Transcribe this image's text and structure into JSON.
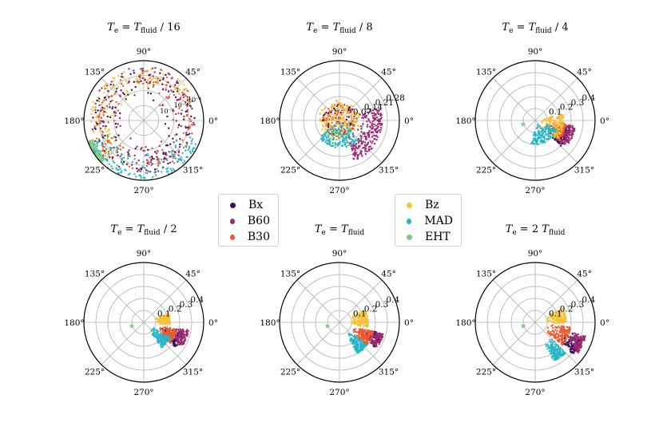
{
  "chart_data": {
    "type": "scatter",
    "subtype": "polar",
    "colors": {
      "Bx": "#3b0f5c",
      "B60": "#9c2a72",
      "B30": "#ee5a2c",
      "Bz": "#f5c136",
      "MAD": "#25b7c9",
      "EHT": "#7fc97f",
      "grid": "#b0b0b0"
    },
    "angle_ticks": [
      "0°",
      "45°",
      "90°",
      "135°",
      "180°",
      "225°",
      "270°",
      "315°"
    ],
    "legend": [
      "Bx",
      "B60",
      "B30",
      "Bz",
      "MAD",
      "EHT"
    ],
    "panels": [
      {
        "title_prefix": "T",
        "title_prefix_sub": "e",
        "title_eq": " = ",
        "title_var": "T",
        "title_var_sub": "fluid",
        "title_suffix": " / 16",
        "radial_scale": "log",
        "radial_tick_labels": [
          "10⁻³",
          "10⁻²",
          "10⁻¹"
        ],
        "series": [
          {
            "name": "Bx",
            "r_range": [
              0.35,
              0.85
            ],
            "theta_range": [
              0,
              360
            ],
            "n": 150
          },
          {
            "name": "B60",
            "r_range": [
              0.35,
              0.9
            ],
            "theta_range": [
              0,
              360
            ],
            "n": 150
          },
          {
            "name": "B30",
            "r_range": [
              0.35,
              0.85
            ],
            "theta_range": [
              0,
              360
            ],
            "n": 130
          },
          {
            "name": "Bz",
            "r_range": [
              0.45,
              0.9
            ],
            "theta_range": [
              20,
              230
            ],
            "n": 130
          },
          {
            "name": "MAD",
            "r_range": [
              0.55,
              1.0
            ],
            "theta_range": [
              200,
              340
            ],
            "n": 140
          }
        ],
        "eht": {
          "theta": [
            200,
            225
          ],
          "r": [
            0.9,
            1.0
          ]
        }
      },
      {
        "title_prefix": "T",
        "title_prefix_sub": "e",
        "title_eq": " = ",
        "title_var": "T",
        "title_var_sub": "fluid",
        "title_suffix": " / 8",
        "radial_scale": "linear",
        "r_max": 0.35,
        "radial_ticks": [
          0.07,
          0.14,
          0.21,
          0.28
        ],
        "radial_tick_labels": [
          "0.07",
          "0.14",
          "0.21",
          "0.28"
        ],
        "series": [
          {
            "name": "Bx",
            "r_range": [
              0.0,
              0.1
            ],
            "theta_range": [
              0,
              360
            ],
            "n": 80
          },
          {
            "name": "B60",
            "r_range": [
              0.1,
              0.25
            ],
            "theta_range": [
              290,
              380
            ],
            "n": 220
          },
          {
            "name": "B30",
            "r_range": [
              0.0,
              0.1
            ],
            "theta_range": [
              0,
              360
            ],
            "n": 90
          },
          {
            "name": "Bz",
            "r_range": [
              0.0,
              0.12
            ],
            "theta_range": [
              0,
              360
            ],
            "n": 170
          },
          {
            "name": "MAD",
            "r_range": [
              0.02,
              0.16
            ],
            "theta_range": [
              220,
              320
            ],
            "n": 140
          }
        ],
        "eht": {
          "theta": [
            190,
            205
          ],
          "r": [
            0.06,
            0.09
          ]
        }
      },
      {
        "title_prefix": "T",
        "title_prefix_sub": "e",
        "title_eq": " = ",
        "title_var": "T",
        "title_var_sub": "fluid",
        "title_suffix": " / 4",
        "radial_scale": "linear",
        "r_max": 0.5,
        "radial_ticks": [
          0.1,
          0.2,
          0.3,
          0.4
        ],
        "radial_tick_labels": [
          "0.1",
          "0.2",
          "0.3",
          "0.4"
        ],
        "series": [
          {
            "name": "Bx",
            "r_range": [
              0.14,
              0.3
            ],
            "theta_range": [
              315,
              350
            ],
            "n": 110
          },
          {
            "name": "B60",
            "r_range": [
              0.22,
              0.34
            ],
            "theta_range": [
              320,
              352
            ],
            "n": 110
          },
          {
            "name": "B30",
            "r_range": [
              0.12,
              0.26
            ],
            "theta_range": [
              320,
              355
            ],
            "n": 140
          },
          {
            "name": "Bz",
            "r_range": [
              0.05,
              0.24
            ],
            "theta_range": [
              320,
              375
            ],
            "n": 150
          },
          {
            "name": "MAD",
            "r_range": [
              0.04,
              0.2
            ],
            "theta_range": [
              260,
              340
            ],
            "n": 150
          }
        ],
        "eht": {
          "theta": [
            190,
            205
          ],
          "r": [
            0.09,
            0.12
          ]
        }
      },
      {
        "title_prefix": "T",
        "title_prefix_sub": "e",
        "title_eq": " = ",
        "title_var": "T",
        "title_var_sub": "fluid",
        "title_suffix": " / 2",
        "radial_scale": "linear",
        "r_max": 0.5,
        "radial_ticks": [
          0.1,
          0.2,
          0.3,
          0.4
        ],
        "radial_tick_labels": [
          "0.1",
          "0.2",
          "0.3",
          "0.4"
        ],
        "series": [
          {
            "name": "Bx",
            "r_range": [
              0.16,
              0.34
            ],
            "theta_range": [
              322,
              345
            ],
            "n": 110
          },
          {
            "name": "B60",
            "r_range": [
              0.25,
              0.38
            ],
            "theta_range": [
              328,
              350
            ],
            "n": 110
          },
          {
            "name": "B30",
            "r_range": [
              0.14,
              0.28
            ],
            "theta_range": [
              322,
              348
            ],
            "n": 140
          },
          {
            "name": "Bz",
            "r_range": [
              0.1,
              0.22
            ],
            "theta_range": [
              355,
              380
            ],
            "n": 140
          },
          {
            "name": "MAD",
            "r_range": [
              0.08,
              0.26
            ],
            "theta_range": [
              305,
              330
            ],
            "n": 150
          }
        ],
        "eht": {
          "theta": [
            190,
            205
          ],
          "r": [
            0.09,
            0.12
          ]
        }
      },
      {
        "title_prefix": "T",
        "title_prefix_sub": "e",
        "title_eq": " = ",
        "title_var": "T",
        "title_var_sub": "fluid",
        "title_suffix": "",
        "radial_scale": "linear",
        "r_max": 0.5,
        "radial_ticks": [
          0.1,
          0.2,
          0.3,
          0.4
        ],
        "radial_tick_labels": [
          "0.1",
          "0.2",
          "0.3",
          "0.4"
        ],
        "series": [
          {
            "name": "Bx",
            "r_range": [
              0.2,
              0.36
            ],
            "theta_range": [
              325,
              345
            ],
            "n": 110
          },
          {
            "name": "B60",
            "r_range": [
              0.26,
              0.38
            ],
            "theta_range": [
              327,
              345
            ],
            "n": 100
          },
          {
            "name": "B30",
            "r_range": [
              0.12,
              0.3
            ],
            "theta_range": [
              318,
              345
            ],
            "n": 140
          },
          {
            "name": "Bz",
            "r_range": [
              0.08,
              0.24
            ],
            "theta_range": [
              350,
              385
            ],
            "n": 150
          },
          {
            "name": "MAD",
            "r_range": [
              0.12,
              0.3
            ],
            "theta_range": [
              300,
              320
            ],
            "n": 150
          }
        ],
        "eht": {
          "theta": [
            190,
            205
          ],
          "r": [
            0.09,
            0.12
          ]
        }
      },
      {
        "title_prefix": "T",
        "title_prefix_sub": "e",
        "title_eq": " = 2 ",
        "title_var": "T",
        "title_var_sub": "fluid",
        "title_suffix": "",
        "radial_scale": "linear",
        "r_max": 0.5,
        "radial_ticks": [
          0.1,
          0.2,
          0.3,
          0.4
        ],
        "radial_tick_labels": [
          "0.1",
          "0.2",
          "0.3",
          "0.4"
        ],
        "series": [
          {
            "name": "Bx",
            "r_range": [
              0.26,
              0.42
            ],
            "theta_range": [
              320,
              340
            ],
            "n": 110
          },
          {
            "name": "B60",
            "r_range": [
              0.3,
              0.44
            ],
            "theta_range": [
              325,
              345
            ],
            "n": 110
          },
          {
            "name": "B30",
            "r_range": [
              0.1,
              0.3
            ],
            "theta_range": [
              320,
              352
            ],
            "n": 140
          },
          {
            "name": "Bz",
            "r_range": [
              0.08,
              0.26
            ],
            "theta_range": [
              358,
              390
            ],
            "n": 150
          },
          {
            "name": "MAD",
            "r_range": [
              0.18,
              0.36
            ],
            "theta_range": [
              295,
              315
            ],
            "n": 150
          }
        ],
        "eht": {
          "theta": [
            190,
            205
          ],
          "r": [
            0.09,
            0.12
          ]
        }
      }
    ]
  }
}
